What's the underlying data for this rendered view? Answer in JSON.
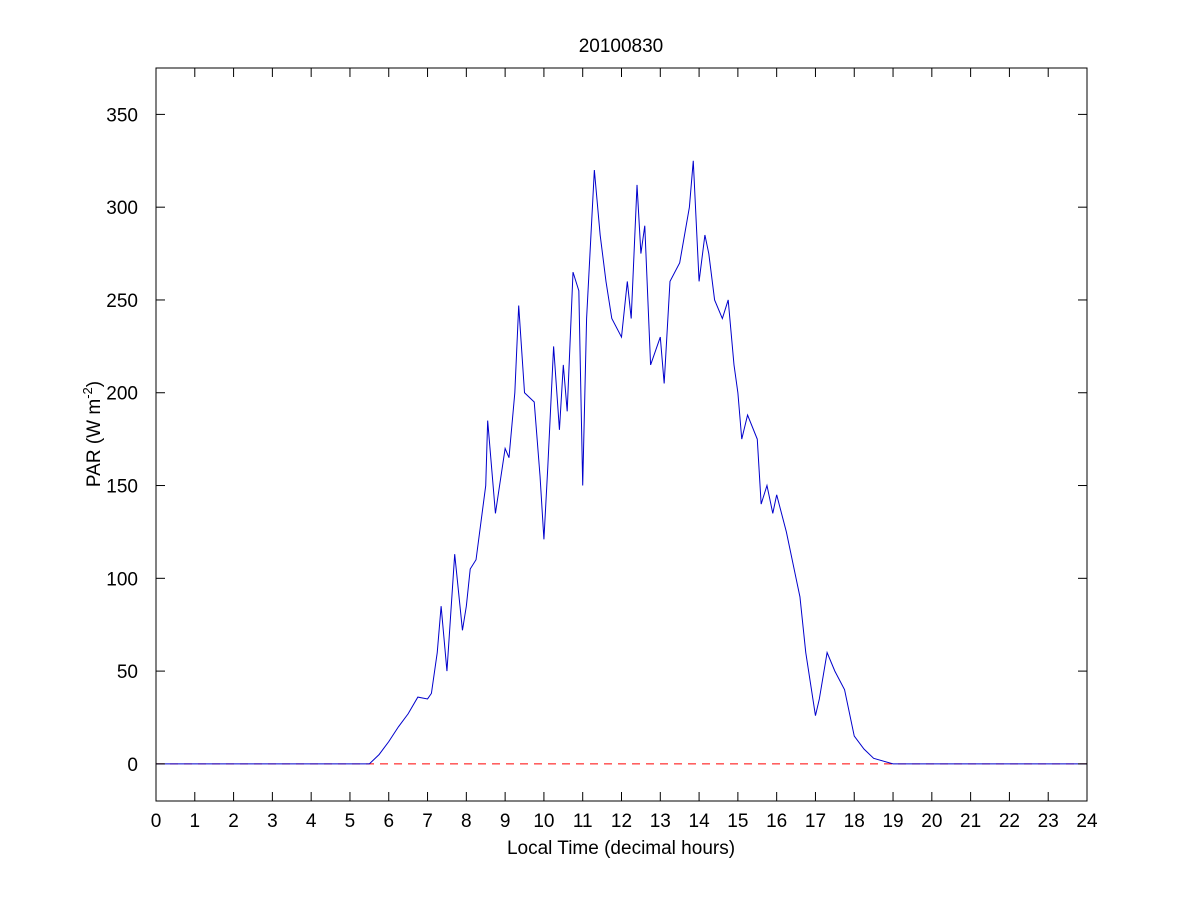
{
  "chart_data": {
    "type": "line",
    "title": "20100830",
    "x_label": "Local Time (decimal hours)",
    "y_label": [
      "PAR (W m",
      "-2",
      ")"
    ],
    "xlim": [
      0,
      24
    ],
    "xticks": [
      0,
      1,
      2,
      3,
      4,
      5,
      6,
      7,
      8,
      9,
      10,
      11,
      12,
      13,
      14,
      15,
      16,
      17,
      18,
      19,
      20,
      21,
      22,
      23,
      24
    ],
    "ylim": [
      -20,
      375
    ],
    "yticks": [
      0,
      50,
      100,
      150,
      200,
      250,
      300,
      350
    ],
    "reference_line": {
      "value": 0,
      "color": "#ff0000",
      "style": "dashed"
    },
    "series": [
      {
        "color": "#0000cc",
        "x": [
          0,
          5.5,
          5.75,
          6,
          6.25,
          6.5,
          6.75,
          7,
          7.1,
          7.25,
          7.35,
          7.5,
          7.7,
          7.9,
          8,
          8.1,
          8.25,
          8.5,
          8.55,
          8.75,
          9,
          9.1,
          9.25,
          9.35,
          9.5,
          9.75,
          9.9,
          10,
          10.1,
          10.25,
          10.4,
          10.5,
          10.6,
          10.75,
          10.9,
          11,
          11.1,
          11.3,
          11.45,
          11.6,
          11.75,
          12,
          12.15,
          12.25,
          12.4,
          12.5,
          12.6,
          12.75,
          13,
          13.1,
          13.25,
          13.5,
          13.75,
          13.85,
          14,
          14.15,
          14.25,
          14.4,
          14.6,
          14.75,
          14.9,
          15,
          15.1,
          15.25,
          15.5,
          15.6,
          15.75,
          15.9,
          16,
          16.25,
          16.5,
          16.6,
          16.75,
          17,
          17.1,
          17.3,
          17.5,
          17.75,
          18,
          18.25,
          18.5,
          19,
          24
        ],
        "values": [
          0,
          0,
          5,
          12,
          20,
          27,
          36,
          35,
          38,
          60,
          85,
          50,
          113,
          72,
          85,
          105,
          110,
          150,
          185,
          135,
          170,
          165,
          200,
          247,
          200,
          195,
          155,
          121,
          160,
          225,
          180,
          215,
          190,
          265,
          255,
          150,
          240,
          320,
          285,
          260,
          240,
          230,
          260,
          240,
          312,
          275,
          290,
          215,
          230,
          205,
          260,
          270,
          300,
          325,
          260,
          285,
          275,
          250,
          240,
          250,
          215,
          200,
          175,
          188,
          175,
          140,
          150,
          135,
          145,
          125,
          100,
          90,
          60,
          26,
          35,
          60,
          50,
          40,
          15,
          8,
          3,
          0,
          0
        ]
      }
    ]
  }
}
